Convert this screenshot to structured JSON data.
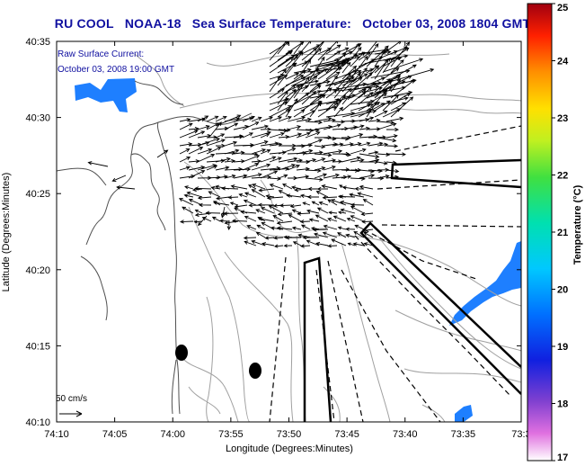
{
  "header": {
    "org": "RU COOL",
    "satellite": "NOAA-18",
    "product": "Sea Surface Temperature:",
    "datetime": "October 03, 2008 1804 GMT"
  },
  "current_label": {
    "line1": "Raw Surface Current:",
    "line2": "October 03, 2008 19:00 GMT"
  },
  "scale_label": "50 cm/s",
  "axes": {
    "xlabel": "Longitude (Degrees:Minutes)",
    "ylabel": "Latitude (Degrees:Minutes)",
    "x_ticks": [
      "74:10",
      "74:05",
      "74:00",
      "73:55",
      "73:50",
      "73:45",
      "73:40",
      "73:35",
      "73:3"
    ],
    "y_ticks": [
      "40:35",
      "40:30",
      "40:25",
      "40:20",
      "40:15",
      "40:10"
    ]
  },
  "colorbar": {
    "label": "Temperature (°C)",
    "ticks": [
      "25",
      "24",
      "23",
      "22",
      "21",
      "20",
      "19",
      "18",
      "17"
    ],
    "min": 17,
    "max": 25
  },
  "colors": {
    "title": "#1010a0",
    "sst_patch": "#1e7fff",
    "sst_patch_dark": "#1a5ad8"
  }
}
